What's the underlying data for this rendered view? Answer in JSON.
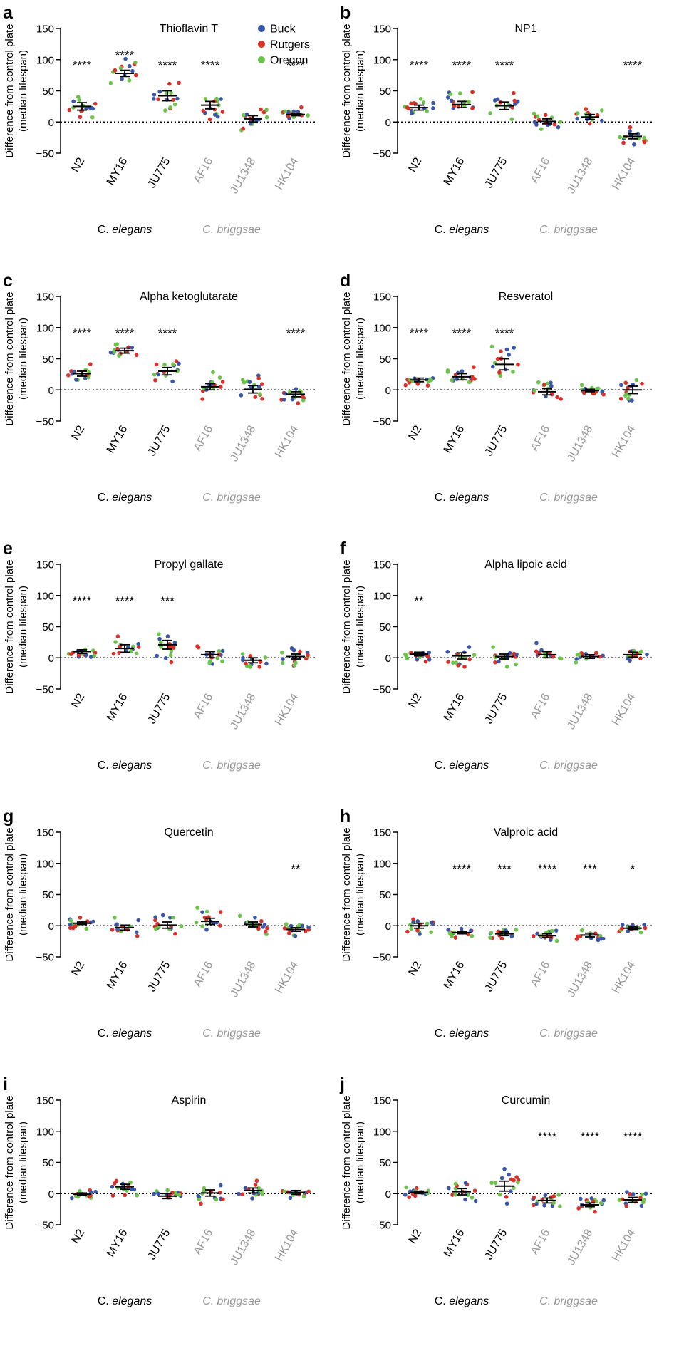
{
  "legend": [
    {
      "label": "Buck",
      "color": "#3a56a6"
    },
    {
      "label": "Rutgers",
      "color": "#d9302a"
    },
    {
      "label": "Oregon",
      "color": "#6cc24a"
    }
  ],
  "yaxis": {
    "label_line1": "Difference from control plate",
    "label_line2": "(median lifespan)",
    "ticks": [
      "150",
      "100",
      "50",
      "0",
      "−50"
    ]
  },
  "strains": [
    "N2",
    "MY16",
    "JU775",
    "AF16",
    "JU1348",
    "HK104"
  ],
  "strain_colors": [
    "#000000",
    "#000000",
    "#000000",
    "#999999",
    "#999999",
    "#999999"
  ],
  "species": {
    "elegans_prefix": "C. ",
    "elegans_name": "elegans",
    "briggsae": "C. briggsae",
    "briggsae_color": "#999999"
  },
  "chart_data": [
    {
      "type": "scatter",
      "panel": "a",
      "title": "Thioflavin T",
      "ylim": [
        -50,
        150
      ],
      "categories": [
        "N2",
        "MY16",
        "JU775",
        "AF16",
        "JU1348",
        "HK104"
      ],
      "means": [
        25,
        78,
        42,
        27,
        5,
        12
      ],
      "sem": [
        6,
        5,
        8,
        6,
        5,
        2
      ],
      "significance": [
        "****",
        "****",
        "****",
        "****",
        "",
        "****"
      ]
    },
    {
      "type": "scatter",
      "panel": "b",
      "title": "NP1",
      "ylim": [
        -50,
        150
      ],
      "categories": [
        "N2",
        "MY16",
        "JU775",
        "AF16",
        "JU1348",
        "HK104"
      ],
      "means": [
        23,
        28,
        26,
        1,
        8,
        -23
      ],
      "sem": [
        4,
        5,
        6,
        4,
        4,
        4
      ],
      "significance": [
        "****",
        "****",
        "****",
        "",
        "",
        "****"
      ]
    },
    {
      "type": "scatter",
      "panel": "c",
      "title": "Alpha ketoglutarate",
      "ylim": [
        -50,
        150
      ],
      "categories": [
        "N2",
        "MY16",
        "JU775",
        "AF16",
        "JU1348",
        "HK104"
      ],
      "means": [
        26,
        63,
        30,
        5,
        1,
        -7
      ],
      "sem": [
        4,
        4,
        6,
        5,
        6,
        4
      ],
      "significance": [
        "****",
        "****",
        "****",
        "",
        "",
        "****"
      ]
    },
    {
      "type": "scatter",
      "panel": "d",
      "title": "Resveratol",
      "ylim": [
        -50,
        150
      ],
      "categories": [
        "N2",
        "MY16",
        "JU775",
        "AF16",
        "JU1348",
        "HK104"
      ],
      "means": [
        16,
        21,
        41,
        -3,
        -1,
        0
      ],
      "sem": [
        3,
        5,
        9,
        5,
        2,
        6
      ],
      "significance": [
        "****",
        "****",
        "****",
        "",
        "",
        ""
      ]
    },
    {
      "type": "scatter",
      "panel": "e",
      "title": "Propyl gallate",
      "ylim": [
        -50,
        150
      ],
      "categories": [
        "N2",
        "MY16",
        "JU775",
        "AF16",
        "JU1348",
        "HK104"
      ],
      "means": [
        10,
        15,
        21,
        5,
        -4,
        2
      ],
      "sem": [
        3,
        6,
        7,
        5,
        4,
        4
      ],
      "significance": [
        "****",
        "****",
        "***",
        "",
        "",
        ""
      ]
    },
    {
      "type": "scatter",
      "panel": "f",
      "title": "Alpha lipoic acid",
      "ylim": [
        -50,
        150
      ],
      "categories": [
        "N2",
        "MY16",
        "JU775",
        "AF16",
        "JU1348",
        "HK104"
      ],
      "means": [
        6,
        3,
        2,
        5,
        2,
        5
      ],
      "sem": [
        3,
        5,
        4,
        5,
        3,
        4
      ],
      "significance": [
        "**",
        "",
        "",
        "",
        "",
        ""
      ]
    },
    {
      "type": "scatter",
      "panel": "g",
      "title": "Quercetin",
      "ylim": [
        -50,
        150
      ],
      "categories": [
        "N2",
        "MY16",
        "JU775",
        "AF16",
        "JU1348",
        "HK104"
      ],
      "means": [
        4,
        -3,
        1,
        7,
        2,
        -6
      ],
      "sem": [
        2,
        4,
        5,
        5,
        4,
        3
      ],
      "significance": [
        "",
        "",
        "",
        "",
        "",
        "**"
      ]
    },
    {
      "type": "scatter",
      "panel": "h",
      "title": "Valproic acid",
      "ylim": [
        -50,
        150
      ],
      "categories": [
        "N2",
        "MY16",
        "JU775",
        "AF16",
        "JU1348",
        "HK104"
      ],
      "means": [
        0,
        -11,
        -13,
        -16,
        -15,
        -4
      ],
      "sem": [
        4,
        2,
        3,
        3,
        3,
        2
      ],
      "significance": [
        "",
        "****",
        "***",
        "****",
        "***",
        "*"
      ]
    },
    {
      "type": "scatter",
      "panel": "i",
      "title": "Aspirin",
      "ylim": [
        -50,
        150
      ],
      "categories": [
        "N2",
        "MY16",
        "JU775",
        "AF16",
        "JU1348",
        "HK104"
      ],
      "means": [
        -1,
        11,
        -4,
        1,
        5,
        2
      ],
      "sem": [
        2,
        4,
        4,
        5,
        4,
        3
      ],
      "significance": [
        "",
        "",
        "",
        "",
        "",
        ""
      ]
    },
    {
      "type": "scatter",
      "panel": "j",
      "title": "Curcumin",
      "ylim": [
        -50,
        150
      ],
      "categories": [
        "N2",
        "MY16",
        "JU775",
        "AF16",
        "JU1348",
        "HK104"
      ],
      "means": [
        2,
        3,
        12,
        -11,
        -18,
        -10
      ],
      "sem": [
        2,
        5,
        8,
        4,
        3,
        4
      ],
      "significance": [
        "",
        "",
        "",
        "****",
        "****",
        "****"
      ]
    }
  ]
}
